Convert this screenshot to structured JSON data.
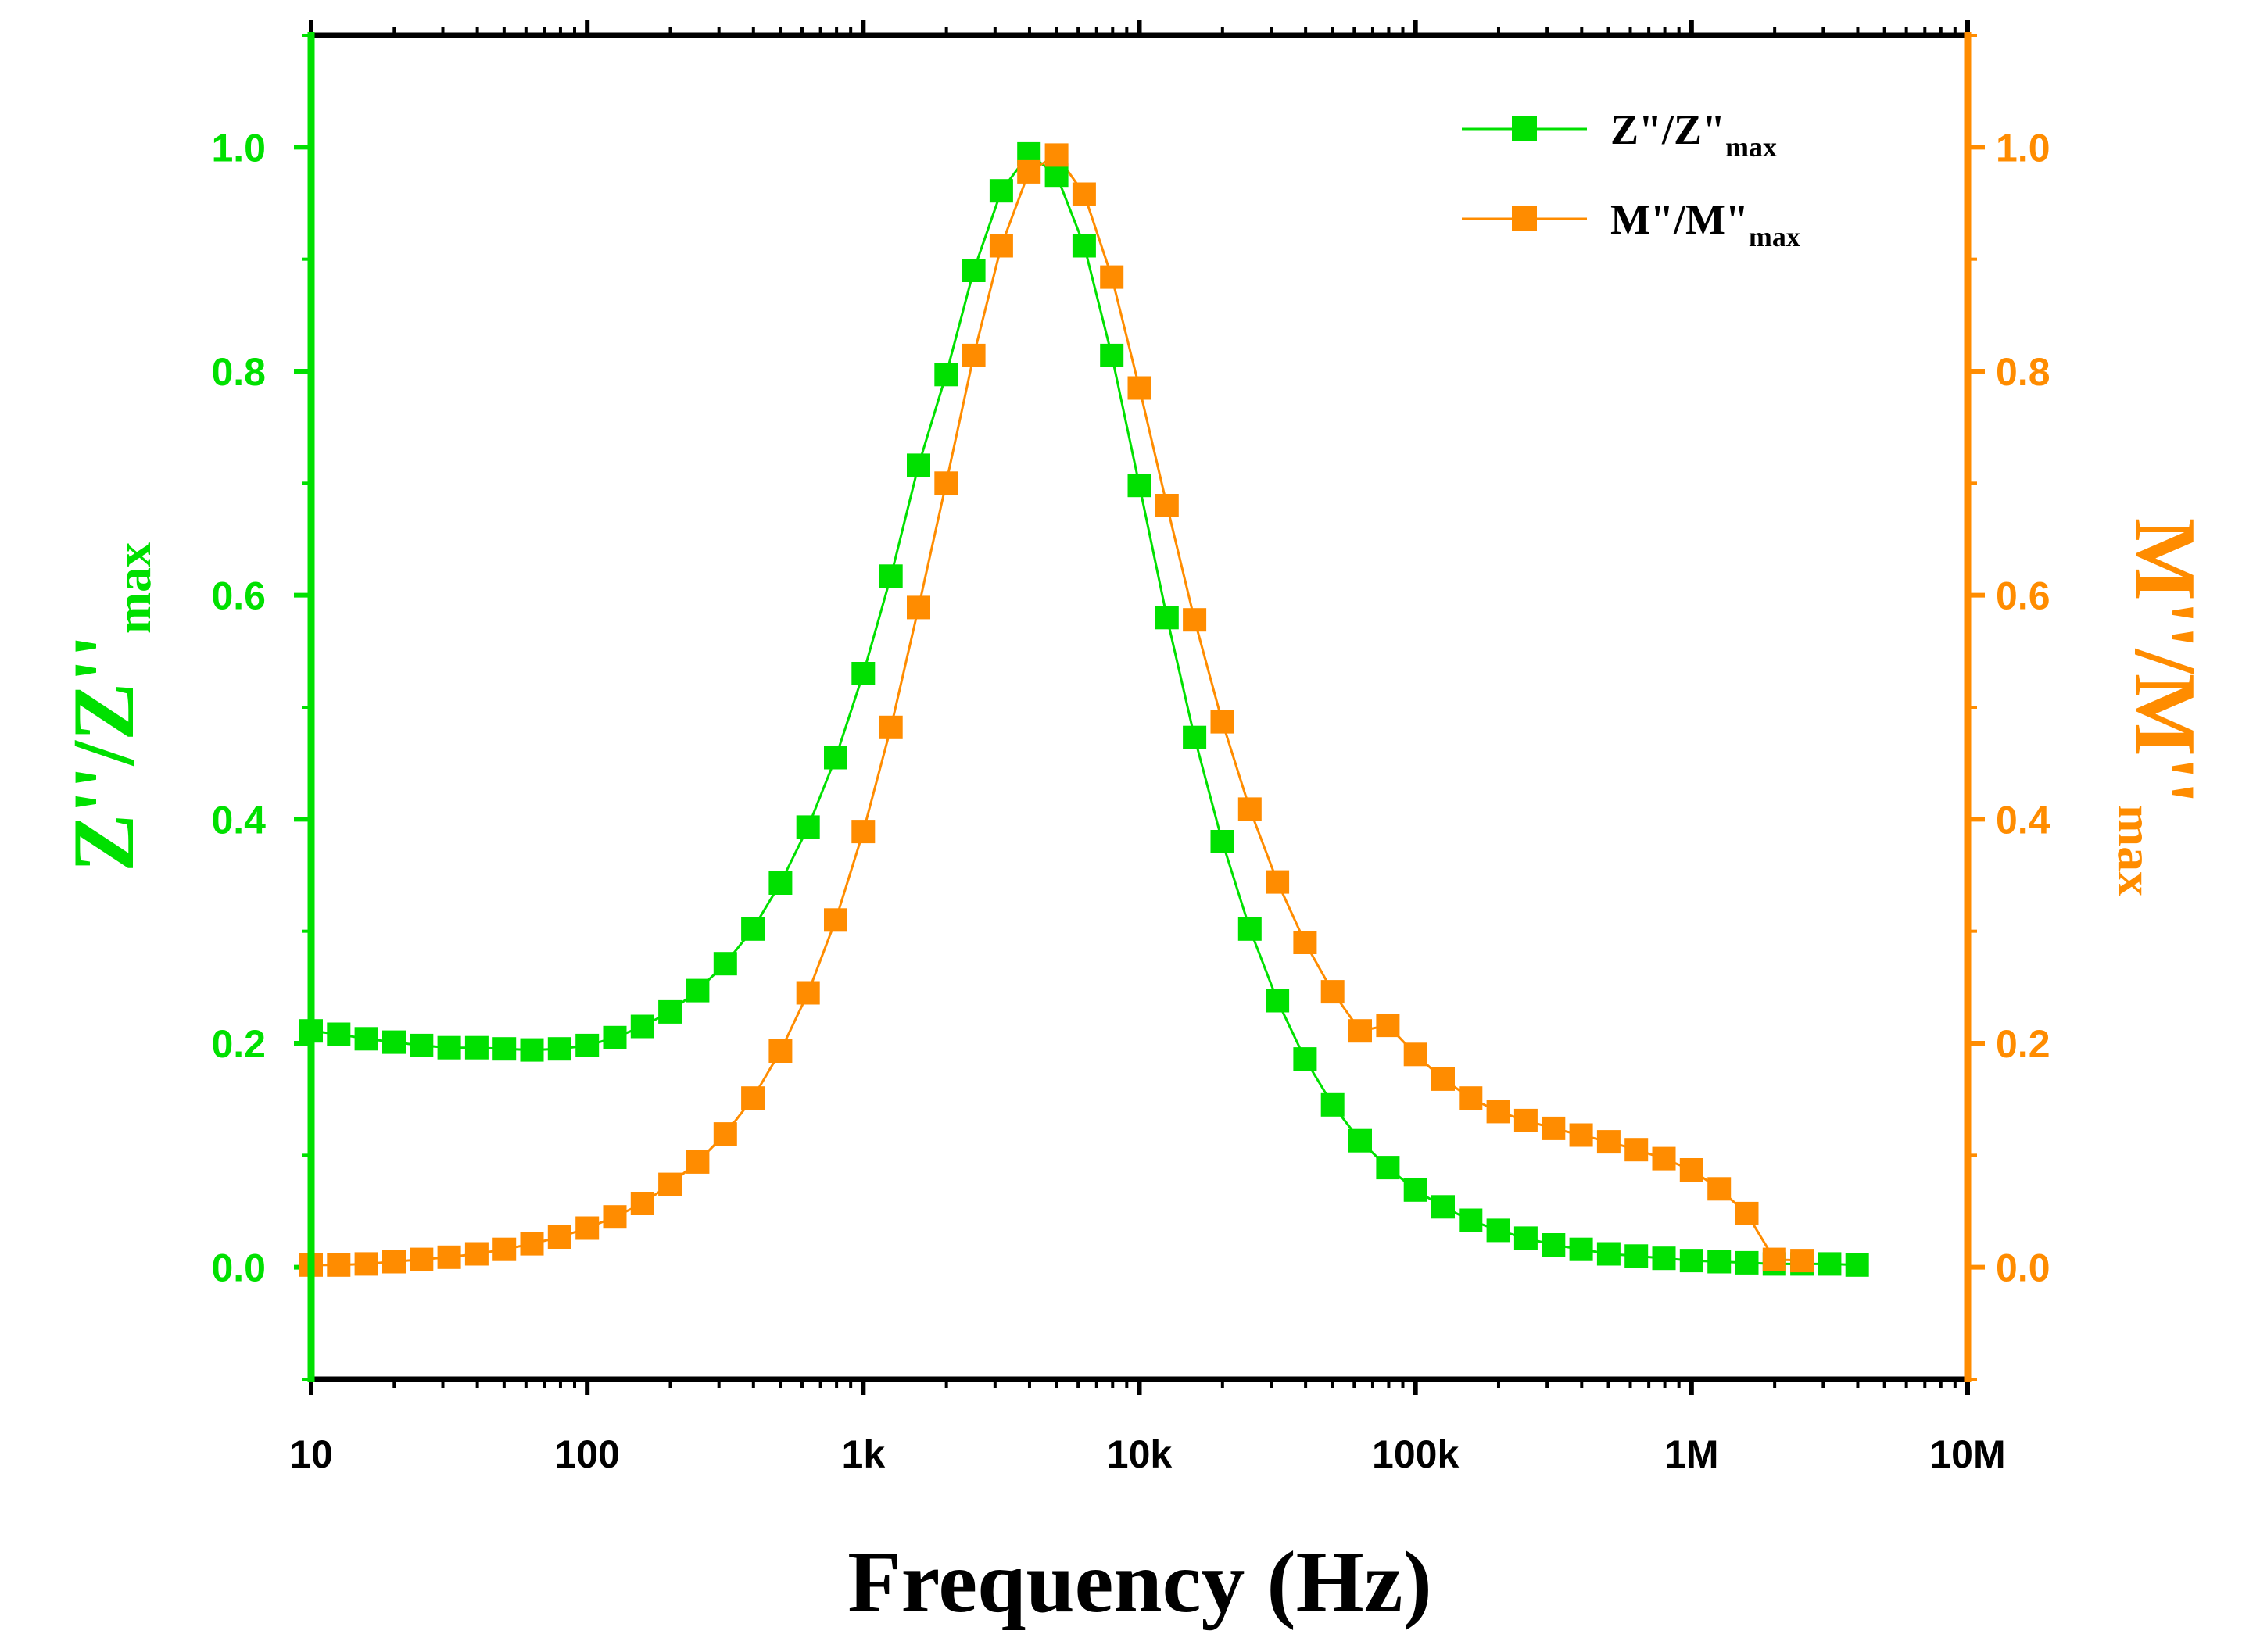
{
  "chart_data": {
    "type": "line",
    "title": "",
    "xlabel": "Frequency (Hz)",
    "xscale": "log",
    "xlim": [
      10,
      10000000
    ],
    "xticks": [
      {
        "value": 10,
        "label": "10"
      },
      {
        "value": 100,
        "label": "100"
      },
      {
        "value": 1000,
        "label": "1k"
      },
      {
        "value": 10000,
        "label": "10k"
      },
      {
        "value": 100000,
        "label": "100k"
      },
      {
        "value": 1000000,
        "label": "1M"
      },
      {
        "value": 10000000,
        "label": "10M"
      }
    ],
    "ylim": [
      -0.1,
      1.1
    ],
    "yticks_left": [
      "0.0",
      "0.2",
      "0.4",
      "0.6",
      "0.8",
      "1.0"
    ],
    "yticks_right": [
      "0.0",
      "0.2",
      "0.4",
      "0.6",
      "0.8",
      "1.0"
    ],
    "ylabel_left": {
      "main": "Z''/Z''",
      "sub": "max"
    },
    "ylabel_right": {
      "main": "M''/M''",
      "sub": "max"
    },
    "legend": {
      "position": "top-right",
      "entries": [
        {
          "main": "Z\"/Z\"",
          "sub": "max",
          "series": "Z"
        },
        {
          "main": "M\"/M\"",
          "sub": "max",
          "series": "M"
        }
      ]
    },
    "colors": {
      "Z": "#00E000",
      "M": "#FF8C00",
      "frame": "#000000"
    },
    "series": [
      {
        "name": "Z\"/Z\"max",
        "key": "Z",
        "axis": "left",
        "x_log_start": 1.0,
        "x_log_step": 0.1,
        "values": [
          0.211,
          0.208,
          0.204,
          0.201,
          0.198,
          0.196,
          0.196,
          0.195,
          0.194,
          0.195,
          0.198,
          0.205,
          0.215,
          0.228,
          0.247,
          0.271,
          0.302,
          0.343,
          0.393,
          0.455,
          0.53,
          0.617,
          0.716,
          0.797,
          0.89,
          0.961,
          0.994,
          0.975,
          0.912,
          0.814,
          0.698,
          0.58,
          0.473,
          0.38,
          0.302,
          0.238,
          0.186,
          0.145,
          0.113,
          0.089,
          0.069,
          0.054,
          0.042,
          0.033,
          0.026,
          0.02,
          0.016,
          0.012,
          0.01,
          0.008,
          0.006,
          0.005,
          0.004,
          0.003,
          0.003,
          0.003,
          0.002
        ]
      },
      {
        "name": "M\"/M\"max",
        "key": "M",
        "axis": "right",
        "x_log_start": 1.0,
        "x_log_step": 0.1,
        "values": [
          0.002,
          0.002,
          0.003,
          0.005,
          0.007,
          0.009,
          0.012,
          0.016,
          0.021,
          0.027,
          0.035,
          0.045,
          0.057,
          0.074,
          0.094,
          0.119,
          0.151,
          0.193,
          0.245,
          0.31,
          0.389,
          0.482,
          0.589,
          0.7,
          0.814,
          0.912,
          0.978,
          0.993,
          0.958,
          0.884,
          0.785,
          0.68,
          0.578,
          0.487,
          0.409,
          0.344,
          0.29,
          0.246,
          0.211,
          0.216,
          0.19,
          0.168,
          0.151,
          0.139,
          0.131,
          0.124,
          0.118,
          0.112,
          0.105,
          0.097,
          0.087,
          0.07,
          0.048,
          0.007,
          0.006
        ]
      }
    ]
  }
}
